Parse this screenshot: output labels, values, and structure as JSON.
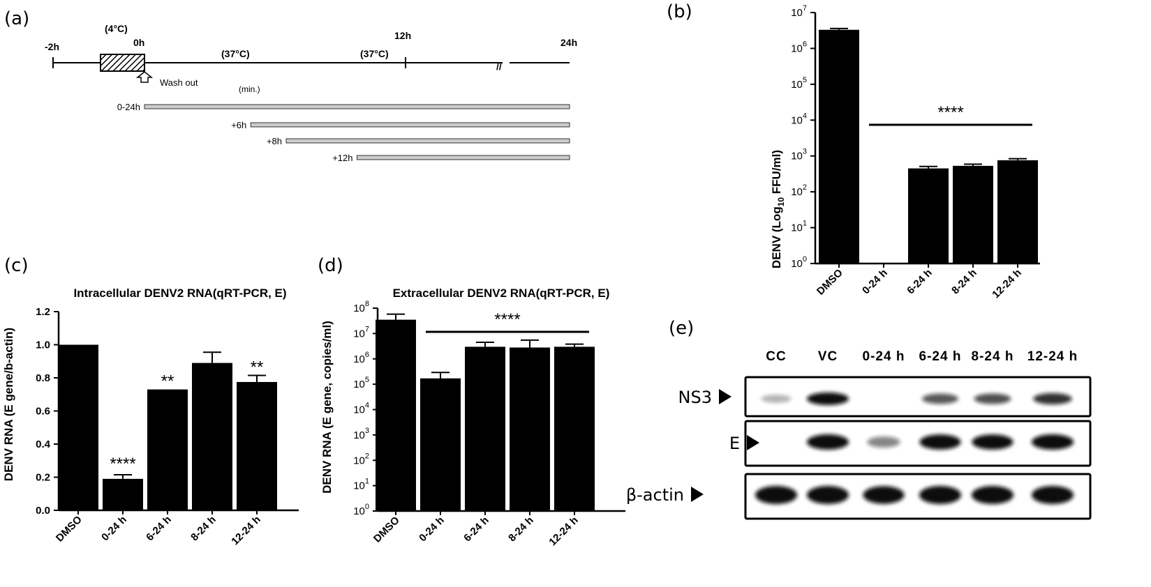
{
  "panels": {
    "a": "(a)",
    "b": "(b)",
    "c": "(c)",
    "d": "(d)",
    "e": "(e)"
  },
  "timeline": {
    "temp_cold": "(4°C)",
    "temp_warm_1": "(37°C)",
    "temp_warm_2": "(37°C)",
    "times": [
      "-2h",
      "0h",
      "12h",
      "24h"
    ],
    "break_mark": "//",
    "wash_out": "Wash out",
    "unit": "(min.)",
    "treatments": [
      {
        "label": "0-24h",
        "start_h": 0,
        "end_h": 24
      },
      {
        "label": "+6h",
        "start_h": 6,
        "end_h": 24
      },
      {
        "label": "+8h",
        "start_h": 8,
        "end_h": 24
      },
      {
        "label": "+12h",
        "start_h": 12,
        "end_h": 24
      }
    ]
  },
  "chart_data": [
    {
      "id": "b",
      "type": "bar",
      "title": "",
      "ylabel_main": "DENV (Log",
      "ylabel_sub": "10",
      "ylabel_end": " FFU/ml)",
      "yscale": "log",
      "ylim": [
        1,
        10000000
      ],
      "ytick_base": "10",
      "ytick_exps": [
        "0",
        "1",
        "2",
        "3",
        "4",
        "5",
        "6",
        "7"
      ],
      "categories": [
        "DMSO",
        "0-24 h",
        "6-24 h",
        "8-24 h",
        "12-24 h"
      ],
      "values": [
        3300000,
        1,
        450,
        530,
        760
      ],
      "errors": [
        3600000,
        null,
        510,
        590,
        840
      ],
      "significance": {
        "label": "****",
        "from": 1,
        "to": 4
      }
    },
    {
      "id": "c",
      "type": "bar",
      "title": "Intracellular DENV2 RNA(qRT-PCR, E)",
      "ylabel": "DENV  RNA (E gene/b-actin)",
      "yscale": "linear",
      "ylim": [
        0,
        1.2
      ],
      "yticks": [
        "0.0",
        "0.2",
        "0.4",
        "0.6",
        "0.8",
        "1.0",
        "1.2"
      ],
      "categories": [
        "DMSO",
        "0-24 h",
        "6-24 h",
        "8-24 h",
        "12-24 h"
      ],
      "values": [
        1.0,
        0.19,
        0.73,
        0.89,
        0.775
      ],
      "errors": [
        null,
        0.215,
        null,
        0.955,
        0.815
      ],
      "labels": [
        "",
        "****",
        "**",
        "",
        "**"
      ]
    },
    {
      "id": "d",
      "type": "bar",
      "title": "Extracellular DENV2 RNA(qRT-PCR, E)",
      "ylabel": "DENV RNA (E gene, copies/ml)",
      "yscale": "log",
      "ylim": [
        1,
        100000000
      ],
      "ytick_base": "10",
      "ytick_exps": [
        "0",
        "1",
        "2",
        "3",
        "4",
        "5",
        "6",
        "7",
        "8"
      ],
      "categories": [
        "DMSO",
        "0-24 h",
        "6-24 h",
        "8-24 h",
        "12-24 h"
      ],
      "values": [
        35000000,
        170000,
        3000000,
        2800000,
        3000000
      ],
      "errors": [
        58000000,
        290000,
        4500000,
        5500000,
        3800000
      ],
      "significance": {
        "label": "****",
        "from": 1,
        "to": 4
      }
    }
  ],
  "blot": {
    "lanes": [
      "CC",
      "VC",
      "0-24 h",
      "6-24 h",
      "8-24 h",
      "12-24 h"
    ],
    "rows": [
      {
        "label": "NS3",
        "intensity": [
          0.08,
          1.0,
          0.0,
          0.55,
          0.6,
          0.75
        ]
      },
      {
        "label": "E",
        "intensity": [
          0.0,
          1.0,
          0.3,
          0.95,
          0.95,
          1.0
        ]
      },
      {
        "label": "β-actin",
        "intensity": [
          1.0,
          1.0,
          0.95,
          1.0,
          1.0,
          1.0
        ]
      }
    ]
  }
}
